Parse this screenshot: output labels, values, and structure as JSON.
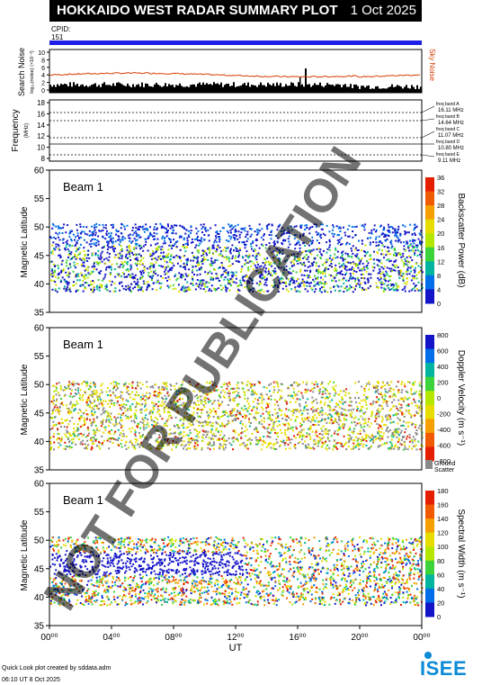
{
  "header": {
    "title": "HOKKAIDO WEST RADAR SUMMARY PLOT",
    "date": "1 Oct 2025",
    "cpid_label": "CPID:",
    "cpid_value": "151"
  },
  "noise_panel": {
    "ylabel": "Search Noise",
    "ylabel_units": "log₁₀(noise)  (×10⁻²)",
    "sky_noise_label": "Sky Noise",
    "ticks": [
      "10",
      "8",
      "6",
      "4",
      "2",
      "0"
    ]
  },
  "frequency_panel": {
    "ylabel": "Frequency",
    "ylabel_units": "(MHz)",
    "ticks": [
      "18",
      "16",
      "14",
      "12",
      "10",
      "8"
    ],
    "bands": [
      {
        "label": "freq band A",
        "value": "16.11 MHz"
      },
      {
        "label": "freq band B",
        "value": "14.64 MHz"
      },
      {
        "label": "freq band C",
        "value": "11.07 MHz"
      },
      {
        "label": "freq band D",
        "value": "10.80 MHz"
      },
      {
        "label": "freq band E",
        "value": "9.11 MHz"
      }
    ]
  },
  "panels": [
    {
      "beam_label": "Beam  1",
      "ylabel": "Magnetic Latitude",
      "yticks": [
        "60",
        "55",
        "50",
        "45",
        "40",
        "35"
      ],
      "colorbar_label": "Backscatter Power (dB)",
      "colorbar_ticks": [
        "36",
        "32",
        "28",
        "24",
        "20",
        "16",
        "12",
        "8",
        "4",
        "0"
      ],
      "colors": [
        "#e61e00",
        "#f05a00",
        "#f5a000",
        "#e6dc00",
        "#b4e600",
        "#3cd23c",
        "#00b4a0",
        "#006ee6",
        "#1414c8"
      ]
    },
    {
      "beam_label": "Beam  1",
      "ylabel": "Magnetic Latitude",
      "yticks": [
        "60",
        "55",
        "50",
        "45",
        "40",
        "35"
      ],
      "colorbar_label": "Doppler Velocity (m s⁻¹)",
      "colorbar_ticks": [
        "800",
        "600",
        "400",
        "200",
        "0",
        "-200",
        "-400",
        "-600",
        "-800"
      ],
      "ground_scatter_label": "Ground Scatter",
      "colors": [
        "#1414c8",
        "#006ee6",
        "#00b4a0",
        "#3cd23c",
        "#b4e600",
        "#e6dc00",
        "#f5a000",
        "#f05a00",
        "#e61e00"
      ]
    },
    {
      "beam_label": "Beam  1",
      "ylabel": "Magnetic Latitude",
      "yticks": [
        "60",
        "55",
        "50",
        "45",
        "40",
        "35"
      ],
      "colorbar_label": "Spectral Width (m s⁻¹)",
      "colorbar_ticks": [
        "180",
        "160",
        "140",
        "120",
        "100",
        "80",
        "60",
        "40",
        "20",
        "0"
      ],
      "colors": [
        "#e61e00",
        "#f05a00",
        "#f5a000",
        "#e6dc00",
        "#b4e600",
        "#3cd23c",
        "#00b4a0",
        "#006ee6",
        "#1414c8"
      ]
    }
  ],
  "x_axis": {
    "ticks": [
      "00⁰⁰",
      "04⁰⁰",
      "08⁰⁰",
      "12⁰⁰",
      "16⁰⁰",
      "20⁰⁰",
      "00⁰⁰"
    ],
    "label": "UT"
  },
  "watermark": "NOT FOR PUBLICATION",
  "footer": {
    "credit": "Quick Look plot created by sddata.adm",
    "timestamp": "06:10 UT  8 Oct 2025",
    "logo": "ISEE"
  }
}
